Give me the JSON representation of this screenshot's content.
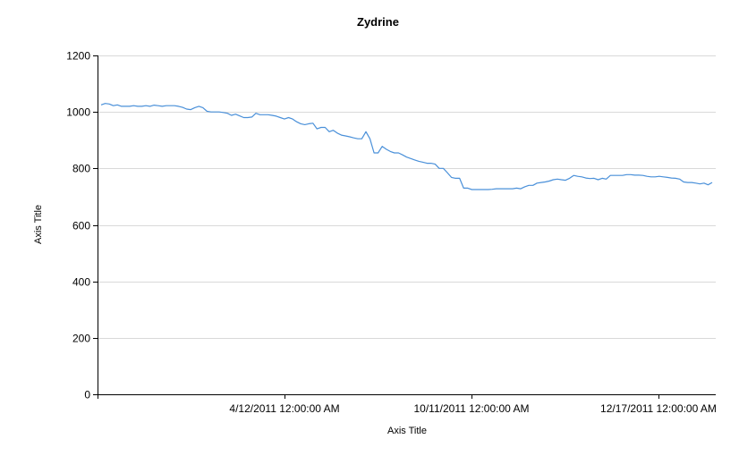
{
  "chart_data": {
    "type": "line",
    "title": "Zydrine",
    "xlabel": "Axis Title",
    "ylabel": "Axis Title",
    "ylim": [
      0,
      1200
    ],
    "yticks": [
      0,
      200,
      400,
      600,
      800,
      1000,
      1200
    ],
    "xticks": [
      "4/12/2011 12:00:00 AM",
      "10/11/2011 12:00:00 AM",
      "12/17/2011 12:00:00 AM"
    ],
    "grid": true,
    "legend": "none",
    "line_color": "#4a90d9",
    "series": [
      {
        "values": [
          1025,
          1030,
          1028,
          1022,
          1025,
          1020,
          1020,
          1020,
          1022,
          1020,
          1020,
          1022,
          1020,
          1024,
          1022,
          1020,
          1022,
          1022,
          1022,
          1020,
          1016,
          1010,
          1008,
          1015,
          1020,
          1015,
          1002,
          1000,
          1000,
          1000,
          998,
          995,
          988,
          992,
          986,
          980,
          980,
          982,
          995,
          990,
          990,
          990,
          988,
          985,
          980,
          975,
          980,
          975,
          965,
          958,
          955,
          958,
          960,
          940,
          945,
          945,
          930,
          935,
          925,
          918,
          915,
          912,
          908,
          905,
          905,
          930,
          905,
          855,
          855,
          878,
          868,
          860,
          855,
          855,
          848,
          840,
          835,
          830,
          825,
          822,
          818,
          818,
          815,
          800,
          800,
          785,
          768,
          765,
          765,
          730,
          730,
          725,
          725,
          725,
          725,
          725,
          726,
          728,
          728,
          728,
          728,
          728,
          730,
          728,
          735,
          740,
          740,
          748,
          750,
          752,
          755,
          760,
          762,
          760,
          758,
          765,
          775,
          772,
          770,
          766,
          764,
          765,
          760,
          765,
          762,
          775,
          775,
          775,
          775,
          778,
          778,
          776,
          776,
          775,
          772,
          770,
          770,
          772,
          770,
          768,
          766,
          765,
          762,
          752,
          750,
          750,
          748,
          745,
          748,
          742,
          750
        ]
      }
    ]
  }
}
